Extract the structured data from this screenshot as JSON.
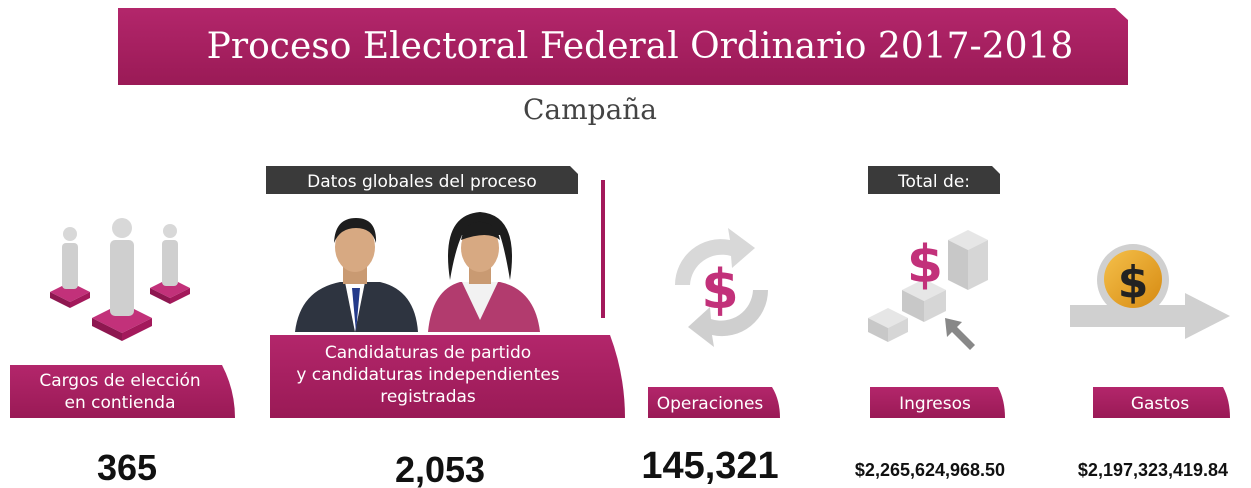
{
  "header": {
    "title": "Proceso Electoral Federal Ordinario 2017-2018",
    "subtitle": "Campaña"
  },
  "tags": [
    "Datos globales del proceso",
    "Total de:"
  ],
  "items": [
    {
      "label": [
        "Cargos de elección",
        "en contienda"
      ],
      "value": "365"
    },
    {
      "label": [
        "Candidaturas de partido",
        "y candidaturas independientes",
        "registradas"
      ],
      "value": "2,053"
    },
    {
      "label": [
        "Operaciones"
      ],
      "value": "145,321"
    },
    {
      "label": [
        "Ingresos"
      ],
      "value": "$2,265,624,968.50"
    },
    {
      "label": [
        "Gastos"
      ],
      "value": "$2,197,323,419.84"
    }
  ]
}
